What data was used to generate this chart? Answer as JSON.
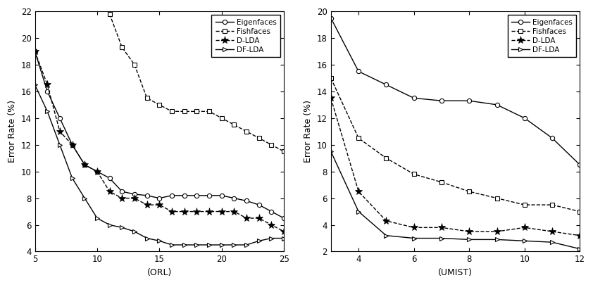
{
  "orl": {
    "x_eigen": [
      5,
      6,
      7,
      8,
      9,
      10,
      11,
      12,
      13,
      14,
      15,
      16,
      17,
      18,
      19,
      20,
      21,
      22,
      23,
      24,
      25
    ],
    "y_eigen": [
      19.0,
      16.0,
      14.0,
      12.0,
      10.5,
      10.0,
      9.5,
      8.5,
      8.3,
      8.2,
      8.0,
      8.2,
      8.2,
      8.2,
      8.2,
      8.2,
      8.0,
      7.8,
      7.5,
      7.0,
      6.5
    ],
    "x_fish": [
      11,
      12,
      13,
      14,
      15,
      16,
      17,
      18,
      19,
      20,
      21,
      22,
      23,
      24,
      25
    ],
    "y_fish": [
      21.8,
      19.3,
      18.0,
      15.5,
      15.0,
      14.5,
      14.5,
      14.5,
      14.5,
      14.0,
      13.5,
      13.0,
      12.5,
      12.0,
      11.5
    ],
    "x_dlda": [
      5,
      6,
      7,
      8,
      9,
      10,
      11,
      12,
      13,
      14,
      15,
      16,
      17,
      18,
      19,
      20,
      21,
      22,
      23,
      24,
      25
    ],
    "y_dlda": [
      19.0,
      16.5,
      13.0,
      12.0,
      10.5,
      10.0,
      8.5,
      8.0,
      8.0,
      7.5,
      7.5,
      7.0,
      7.0,
      7.0,
      7.0,
      7.0,
      7.0,
      6.5,
      6.5,
      6.0,
      5.5
    ],
    "x_dflda": [
      5,
      6,
      7,
      8,
      9,
      10,
      11,
      12,
      13,
      14,
      15,
      16,
      17,
      18,
      19,
      20,
      21,
      22,
      23,
      24,
      25
    ],
    "y_dflda": [
      16.5,
      14.5,
      12.0,
      9.5,
      8.0,
      6.5,
      6.0,
      5.8,
      5.5,
      5.0,
      4.8,
      4.5,
      4.5,
      4.5,
      4.5,
      4.5,
      4.5,
      4.5,
      4.8,
      5.0,
      5.0
    ],
    "xlabel": "(ORL)",
    "ylabel": "Error Rate (%)",
    "xlim": [
      5,
      25
    ],
    "ylim": [
      4,
      22
    ],
    "yticks": [
      4,
      6,
      8,
      10,
      12,
      14,
      16,
      18,
      20,
      22
    ],
    "xticks": [
      5,
      10,
      15,
      20,
      25
    ]
  },
  "umist": {
    "x_eigen": [
      3,
      4,
      5,
      6,
      7,
      8,
      9,
      10,
      11,
      12
    ],
    "y_eigen": [
      19.5,
      15.5,
      14.5,
      13.5,
      13.3,
      13.3,
      13.0,
      12.0,
      10.5,
      8.5
    ],
    "x_fish": [
      3,
      4,
      5,
      6,
      7,
      8,
      9,
      10,
      11,
      12
    ],
    "y_fish": [
      15.0,
      10.5,
      9.0,
      7.8,
      7.2,
      6.5,
      6.0,
      5.5,
      5.5,
      5.0
    ],
    "x_dlda": [
      3,
      4,
      5,
      6,
      7,
      8,
      9,
      10,
      11,
      12
    ],
    "y_dlda": [
      13.5,
      6.5,
      4.3,
      3.8,
      3.8,
      3.5,
      3.5,
      3.8,
      3.5,
      3.2
    ],
    "x_dflda": [
      3,
      4,
      5,
      6,
      7,
      8,
      9,
      10,
      11,
      12
    ],
    "y_dflda": [
      9.5,
      5.0,
      3.2,
      3.0,
      3.0,
      2.9,
      2.9,
      2.8,
      2.7,
      2.2
    ],
    "xlabel": "(UMIST)",
    "ylabel": "Error Rate (%)",
    "xlim": [
      3,
      12
    ],
    "ylim": [
      2,
      20
    ],
    "yticks": [
      2,
      4,
      6,
      8,
      10,
      12,
      14,
      16,
      18,
      20
    ],
    "xticks": [
      4,
      6,
      8,
      10,
      12
    ]
  },
  "legend_labels": [
    "Eigenfaces",
    "Fishfaces",
    "D-LDA",
    "DF-LDA"
  ],
  "bg_color": "#ffffff",
  "fig_width": 8.42,
  "fig_height": 4.05,
  "dpi": 100
}
